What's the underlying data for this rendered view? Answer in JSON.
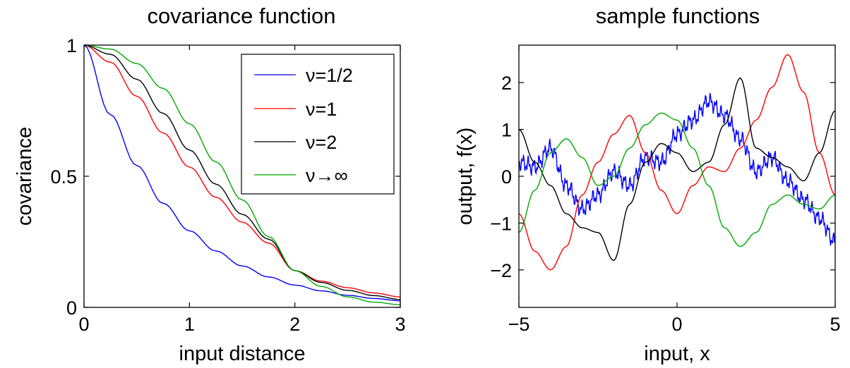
{
  "chart_data": [
    {
      "type": "line",
      "title": "covariance function",
      "xlabel": "input distance",
      "ylabel": "covariance",
      "xlim": [
        0,
        3
      ],
      "ylim": [
        0,
        1
      ],
      "xticks": [
        "0",
        "1",
        "2",
        "3"
      ],
      "yticks": [
        "0",
        "0.5",
        "1"
      ],
      "grid": false,
      "legend_position": "top-right",
      "series": [
        {
          "name": "ν=1/2",
          "color": "#0000ff",
          "x": [
            0,
            0.25,
            0.5,
            0.75,
            1,
            1.25,
            1.5,
            1.75,
            2,
            2.25,
            2.5,
            2.75,
            3
          ],
          "y": [
            1.0,
            0.735,
            0.541,
            0.397,
            0.292,
            0.215,
            0.158,
            0.116,
            0.085,
            0.063,
            0.046,
            0.034,
            0.025
          ]
        },
        {
          "name": "ν=1",
          "color": "#ff0000",
          "x": [
            0,
            0.25,
            0.5,
            0.75,
            1,
            1.25,
            1.5,
            1.75,
            2,
            2.25,
            2.5,
            2.75,
            3
          ],
          "y": [
            1.0,
            0.935,
            0.805,
            0.665,
            0.535,
            0.42,
            0.325,
            0.245,
            0.14,
            0.1,
            0.075,
            0.055,
            0.04
          ]
        },
        {
          "name": "ν=2",
          "color": "#000000",
          "x": [
            0,
            0.25,
            0.5,
            0.75,
            1,
            1.25,
            1.5,
            1.75,
            2,
            2.25,
            2.5,
            2.75,
            3
          ],
          "y": [
            1.0,
            0.965,
            0.87,
            0.74,
            0.6,
            0.47,
            0.355,
            0.26,
            0.14,
            0.095,
            0.065,
            0.045,
            0.03
          ]
        },
        {
          "name": "ν→∞",
          "color": "#00aa00",
          "x": [
            0,
            0.25,
            0.5,
            0.75,
            1,
            1.25,
            1.5,
            1.75,
            2,
            2.25,
            2.5,
            2.75,
            3
          ],
          "y": [
            1.0,
            0.985,
            0.93,
            0.835,
            0.7,
            0.555,
            0.41,
            0.27,
            0.14,
            0.08,
            0.04,
            0.02,
            0.01
          ]
        }
      ]
    },
    {
      "type": "line",
      "title": "sample functions",
      "xlabel": "input, x",
      "ylabel": "output, f(x)",
      "xlim": [
        -5,
        5
      ],
      "ylim": [
        -2.8,
        2.8
      ],
      "xticks": [
        "−5",
        "0",
        "5"
      ],
      "yticks": [
        "−2",
        "−1",
        "0",
        "1",
        "2"
      ],
      "grid": false,
      "series": [
        {
          "color": "#0000ff",
          "x": [
            -5,
            -4.5,
            -4,
            -3.5,
            -3,
            -2.5,
            -2,
            -1.5,
            -1,
            -0.5,
            0,
            0.5,
            1,
            1.5,
            2,
            2.5,
            3,
            3.5,
            4,
            4.5,
            5
          ],
          "y": [
            0.3,
            0.2,
            0.6,
            -0.2,
            -0.7,
            -0.4,
            0.1,
            -0.2,
            0.4,
            0.3,
            0.9,
            1.2,
            1.6,
            1.3,
            0.8,
            0.1,
            0.4,
            -0.1,
            -0.5,
            -0.9,
            -1.4
          ]
        },
        {
          "color": "#ff0000",
          "x": [
            -5,
            -4.5,
            -4,
            -3.5,
            -3,
            -2.5,
            -2,
            -1.5,
            -1,
            -0.5,
            0,
            0.5,
            1,
            1.5,
            2,
            2.5,
            3,
            3.5,
            4,
            4.5,
            5
          ],
          "y": [
            -0.8,
            -1.6,
            -2.0,
            -1.5,
            -0.4,
            0.3,
            0.9,
            1.3,
            0.5,
            -0.3,
            -0.8,
            -0.2,
            0.2,
            0.1,
            0.6,
            1.2,
            1.9,
            2.6,
            1.8,
            0.5,
            -0.4
          ]
        },
        {
          "color": "#000000",
          "x": [
            -5,
            -4.5,
            -4,
            -3.5,
            -3,
            -2.5,
            -2,
            -1.5,
            -1,
            -0.5,
            0,
            0.5,
            1,
            1.5,
            2,
            2.5,
            3,
            3.5,
            4,
            4.5,
            5
          ],
          "y": [
            1.0,
            0.3,
            -0.2,
            -0.8,
            -1.1,
            -1.2,
            -1.8,
            -0.6,
            0.3,
            0.7,
            0.5,
            0.1,
            0.3,
            1.1,
            2.1,
            0.6,
            0.4,
            0.2,
            -0.1,
            0.5,
            1.4
          ]
        },
        {
          "color": "#00aa00",
          "x": [
            -5,
            -4.5,
            -4,
            -3.5,
            -3,
            -2.5,
            -2,
            -1.5,
            -1,
            -0.5,
            0,
            0.5,
            1,
            1.5,
            2,
            2.5,
            3,
            3.5,
            4,
            4.5,
            5
          ],
          "y": [
            -1.2,
            -0.3,
            0.5,
            0.8,
            0.4,
            -0.2,
            0.0,
            0.6,
            1.1,
            1.35,
            1.2,
            0.6,
            -0.2,
            -1.1,
            -1.5,
            -1.2,
            -0.6,
            -0.4,
            -0.6,
            -0.7,
            -0.4
          ]
        }
      ]
    }
  ]
}
